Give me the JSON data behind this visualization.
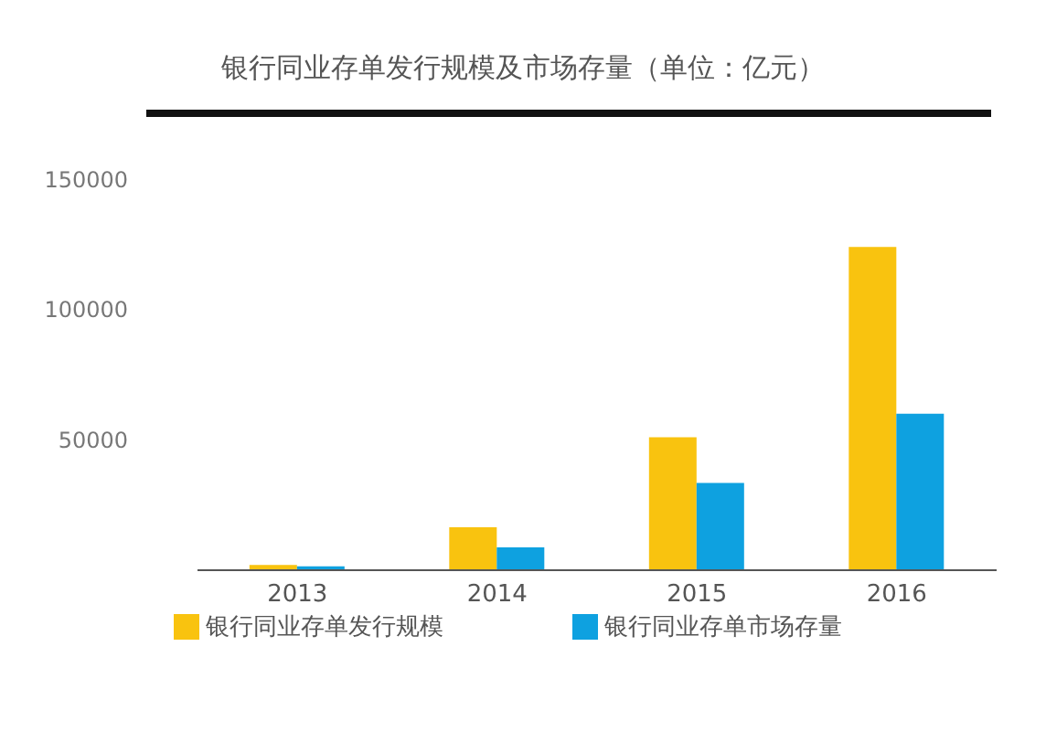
{
  "chart_data": {
    "type": "bar",
    "title": "银行同业存单发行规模及市场存量（单位：亿元）",
    "categories": [
      "2013",
      "2014",
      "2015",
      "2016"
    ],
    "series": [
      {
        "name": "银行同业存单发行规模",
        "color": "#f9c30f",
        "values": [
          2000,
          16500,
          51000,
          124000
        ]
      },
      {
        "name": "银行同业存单市场存量",
        "color": "#0ea1e0",
        "values": [
          1500,
          8800,
          33500,
          60000
        ]
      }
    ],
    "ylim": [
      0,
      150000
    ],
    "yticks": [
      50000,
      100000,
      150000
    ],
    "grid": false,
    "legend": "bottom"
  }
}
